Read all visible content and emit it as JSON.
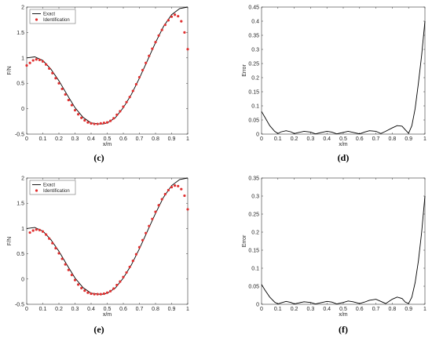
{
  "chart_data": [
    {
      "panel": "(c)",
      "type": "line",
      "xlabel": "x/m",
      "ylabel": "F/N",
      "xlim": [
        0,
        1
      ],
      "ylim": [
        -0.5,
        2
      ],
      "xticks": [
        "0",
        "0.1",
        "0.2",
        "0.3",
        "0.4",
        "0.5",
        "0.6",
        "0.7",
        "0.8",
        "0.9",
        "1"
      ],
      "yticks": [
        "-0.5",
        "0",
        "0.5",
        "1",
        "1.5",
        "2"
      ],
      "legend": {
        "position": "top-left",
        "entries": [
          "Exact",
          "Identification"
        ]
      },
      "series": [
        {
          "name": "Exact",
          "style": "line",
          "color": "#000000",
          "x": [
            0,
            0.05,
            0.1,
            0.15,
            0.2,
            0.25,
            0.3,
            0.35,
            0.4,
            0.45,
            0.475,
            0.5,
            0.55,
            0.6,
            0.65,
            0.7,
            0.75,
            0.8,
            0.85,
            0.9,
            0.95,
            1.0
          ],
          "y": [
            1.0,
            1.02,
            0.95,
            0.78,
            0.55,
            0.28,
            0.02,
            -0.17,
            -0.28,
            -0.3,
            -0.3,
            -0.28,
            -0.18,
            0.02,
            0.28,
            0.6,
            0.95,
            1.3,
            1.62,
            1.85,
            1.97,
            2.0
          ]
        },
        {
          "name": "Identification",
          "style": "marker",
          "color": "#e03030",
          "x": [
            0,
            0.02,
            0.04,
            0.06,
            0.08,
            0.1,
            0.12,
            0.14,
            0.16,
            0.18,
            0.2,
            0.22,
            0.24,
            0.26,
            0.28,
            0.3,
            0.32,
            0.34,
            0.36,
            0.38,
            0.4,
            0.42,
            0.44,
            0.46,
            0.48,
            0.5,
            0.52,
            0.54,
            0.56,
            0.58,
            0.6,
            0.62,
            0.64,
            0.66,
            0.68,
            0.7,
            0.72,
            0.74,
            0.76,
            0.78,
            0.8,
            0.82,
            0.84,
            0.86,
            0.88,
            0.9,
            0.92,
            0.94,
            0.96,
            0.98,
            1.0
          ],
          "y": [
            0.85,
            0.9,
            0.95,
            0.97,
            0.96,
            0.93,
            0.87,
            0.79,
            0.7,
            0.6,
            0.5,
            0.39,
            0.28,
            0.17,
            0.07,
            -0.03,
            -0.11,
            -0.18,
            -0.23,
            -0.27,
            -0.29,
            -0.3,
            -0.3,
            -0.29,
            -0.28,
            -0.27,
            -0.24,
            -0.19,
            -0.12,
            -0.05,
            0.04,
            0.13,
            0.23,
            0.35,
            0.48,
            0.62,
            0.76,
            0.9,
            1.04,
            1.18,
            1.31,
            1.44,
            1.55,
            1.65,
            1.74,
            1.81,
            1.85,
            1.82,
            1.72,
            1.5,
            1.17
          ]
        }
      ]
    },
    {
      "panel": "(d)",
      "type": "line",
      "xlabel": "x/m",
      "ylabel": "Error",
      "xlim": [
        0,
        1
      ],
      "ylim": [
        0,
        0.45
      ],
      "xticks": [
        "0",
        "0.1",
        "0.2",
        "0.3",
        "0.4",
        "0.5",
        "0.6",
        "0.7",
        "0.8",
        "0.9",
        "1"
      ],
      "yticks": [
        "0",
        "0.05",
        "0.1",
        "0.15",
        "0.2",
        "0.25",
        "0.3",
        "0.35",
        "0.4",
        "0.45"
      ],
      "series": [
        {
          "name": "",
          "style": "line",
          "color": "#000000",
          "x": [
            0,
            0.02,
            0.05,
            0.08,
            0.1,
            0.12,
            0.15,
            0.18,
            0.2,
            0.23,
            0.26,
            0.3,
            0.33,
            0.36,
            0.4,
            0.43,
            0.46,
            0.5,
            0.53,
            0.56,
            0.6,
            0.63,
            0.66,
            0.7,
            0.73,
            0.76,
            0.8,
            0.83,
            0.86,
            0.88,
            0.9,
            0.92,
            0.94,
            0.96,
            0.98,
            1.0
          ],
          "y": [
            0.08,
            0.06,
            0.03,
            0.01,
            0.002,
            0.008,
            0.012,
            0.008,
            0.002,
            0.006,
            0.01,
            0.007,
            0.001,
            0.005,
            0.01,
            0.007,
            0.001,
            0.006,
            0.01,
            0.006,
            0.001,
            0.007,
            0.012,
            0.01,
            0.002,
            0.01,
            0.022,
            0.03,
            0.028,
            0.015,
            0.003,
            0.03,
            0.09,
            0.18,
            0.28,
            0.4
          ]
        }
      ]
    },
    {
      "panel": "(e)",
      "type": "line",
      "xlabel": "x/m",
      "ylabel": "F/N",
      "xlim": [
        0,
        1
      ],
      "ylim": [
        -0.5,
        2
      ],
      "xticks": [
        "0",
        "0.1",
        "0.2",
        "0.3",
        "0.4",
        "0.5",
        "0.6",
        "0.7",
        "0.8",
        "0.9",
        "1"
      ],
      "yticks": [
        "-0.5",
        "0",
        "0.5",
        "1",
        "1.5",
        "2"
      ],
      "legend": {
        "position": "top-left",
        "entries": [
          "Exact",
          "Identification"
        ]
      },
      "series": [
        {
          "name": "Exact",
          "style": "line",
          "color": "#000000",
          "x": [
            0,
            0.05,
            0.1,
            0.15,
            0.2,
            0.25,
            0.3,
            0.35,
            0.4,
            0.45,
            0.475,
            0.5,
            0.55,
            0.6,
            0.65,
            0.7,
            0.75,
            0.8,
            0.85,
            0.9,
            0.95,
            1.0
          ],
          "y": [
            1.0,
            1.02,
            0.95,
            0.78,
            0.55,
            0.28,
            0.02,
            -0.17,
            -0.28,
            -0.3,
            -0.3,
            -0.28,
            -0.18,
            0.02,
            0.28,
            0.6,
            0.95,
            1.3,
            1.62,
            1.85,
            1.97,
            2.0
          ]
        },
        {
          "name": "Identification",
          "style": "marker",
          "color": "#e03030",
          "x": [
            0.02,
            0.04,
            0.06,
            0.08,
            0.1,
            0.12,
            0.14,
            0.16,
            0.18,
            0.2,
            0.22,
            0.24,
            0.26,
            0.28,
            0.3,
            0.32,
            0.34,
            0.36,
            0.38,
            0.4,
            0.42,
            0.44,
            0.46,
            0.48,
            0.5,
            0.52,
            0.54,
            0.56,
            0.58,
            0.6,
            0.62,
            0.64,
            0.66,
            0.68,
            0.7,
            0.72,
            0.74,
            0.76,
            0.78,
            0.8,
            0.82,
            0.84,
            0.86,
            0.88,
            0.9,
            0.92,
            0.94,
            0.96,
            0.98,
            1.0
          ],
          "y": [
            0.92,
            0.96,
            0.98,
            0.97,
            0.94,
            0.88,
            0.8,
            0.71,
            0.61,
            0.51,
            0.4,
            0.29,
            0.18,
            0.08,
            -0.02,
            -0.11,
            -0.18,
            -0.23,
            -0.27,
            -0.29,
            -0.3,
            -0.3,
            -0.3,
            -0.29,
            -0.27,
            -0.24,
            -0.19,
            -0.12,
            -0.05,
            0.04,
            0.13,
            0.24,
            0.36,
            0.49,
            0.63,
            0.77,
            0.91,
            1.05,
            1.19,
            1.33,
            1.46,
            1.58,
            1.68,
            1.76,
            1.82,
            1.85,
            1.84,
            1.78,
            1.65,
            1.38
          ]
        }
      ]
    },
    {
      "panel": "(f)",
      "type": "line",
      "xlabel": "x/m",
      "ylabel": "Error",
      "xlim": [
        0,
        1
      ],
      "ylim": [
        0,
        0.35
      ],
      "xticks": [
        "0",
        "0.1",
        "0.2",
        "0.3",
        "0.4",
        "0.5",
        "0.6",
        "0.7",
        "0.8",
        "0.9",
        "1"
      ],
      "yticks": [
        "0",
        "0.05",
        "0.1",
        "0.15",
        "0.2",
        "0.25",
        "0.3",
        "0.35"
      ],
      "series": [
        {
          "name": "",
          "style": "line",
          "color": "#000000",
          "x": [
            0,
            0.02,
            0.05,
            0.08,
            0.1,
            0.12,
            0.15,
            0.18,
            0.2,
            0.23,
            0.26,
            0.3,
            0.33,
            0.36,
            0.4,
            0.43,
            0.46,
            0.5,
            0.53,
            0.56,
            0.6,
            0.63,
            0.66,
            0.7,
            0.73,
            0.76,
            0.8,
            0.83,
            0.86,
            0.88,
            0.9,
            0.92,
            0.94,
            0.96,
            0.98,
            1.0
          ],
          "y": [
            0.055,
            0.04,
            0.02,
            0.006,
            0.001,
            0.004,
            0.008,
            0.005,
            0.001,
            0.004,
            0.007,
            0.005,
            0.001,
            0.004,
            0.008,
            0.006,
            0.001,
            0.005,
            0.009,
            0.007,
            0.002,
            0.006,
            0.011,
            0.014,
            0.008,
            0.002,
            0.014,
            0.02,
            0.016,
            0.006,
            0.002,
            0.02,
            0.06,
            0.12,
            0.2,
            0.3
          ]
        }
      ]
    }
  ]
}
